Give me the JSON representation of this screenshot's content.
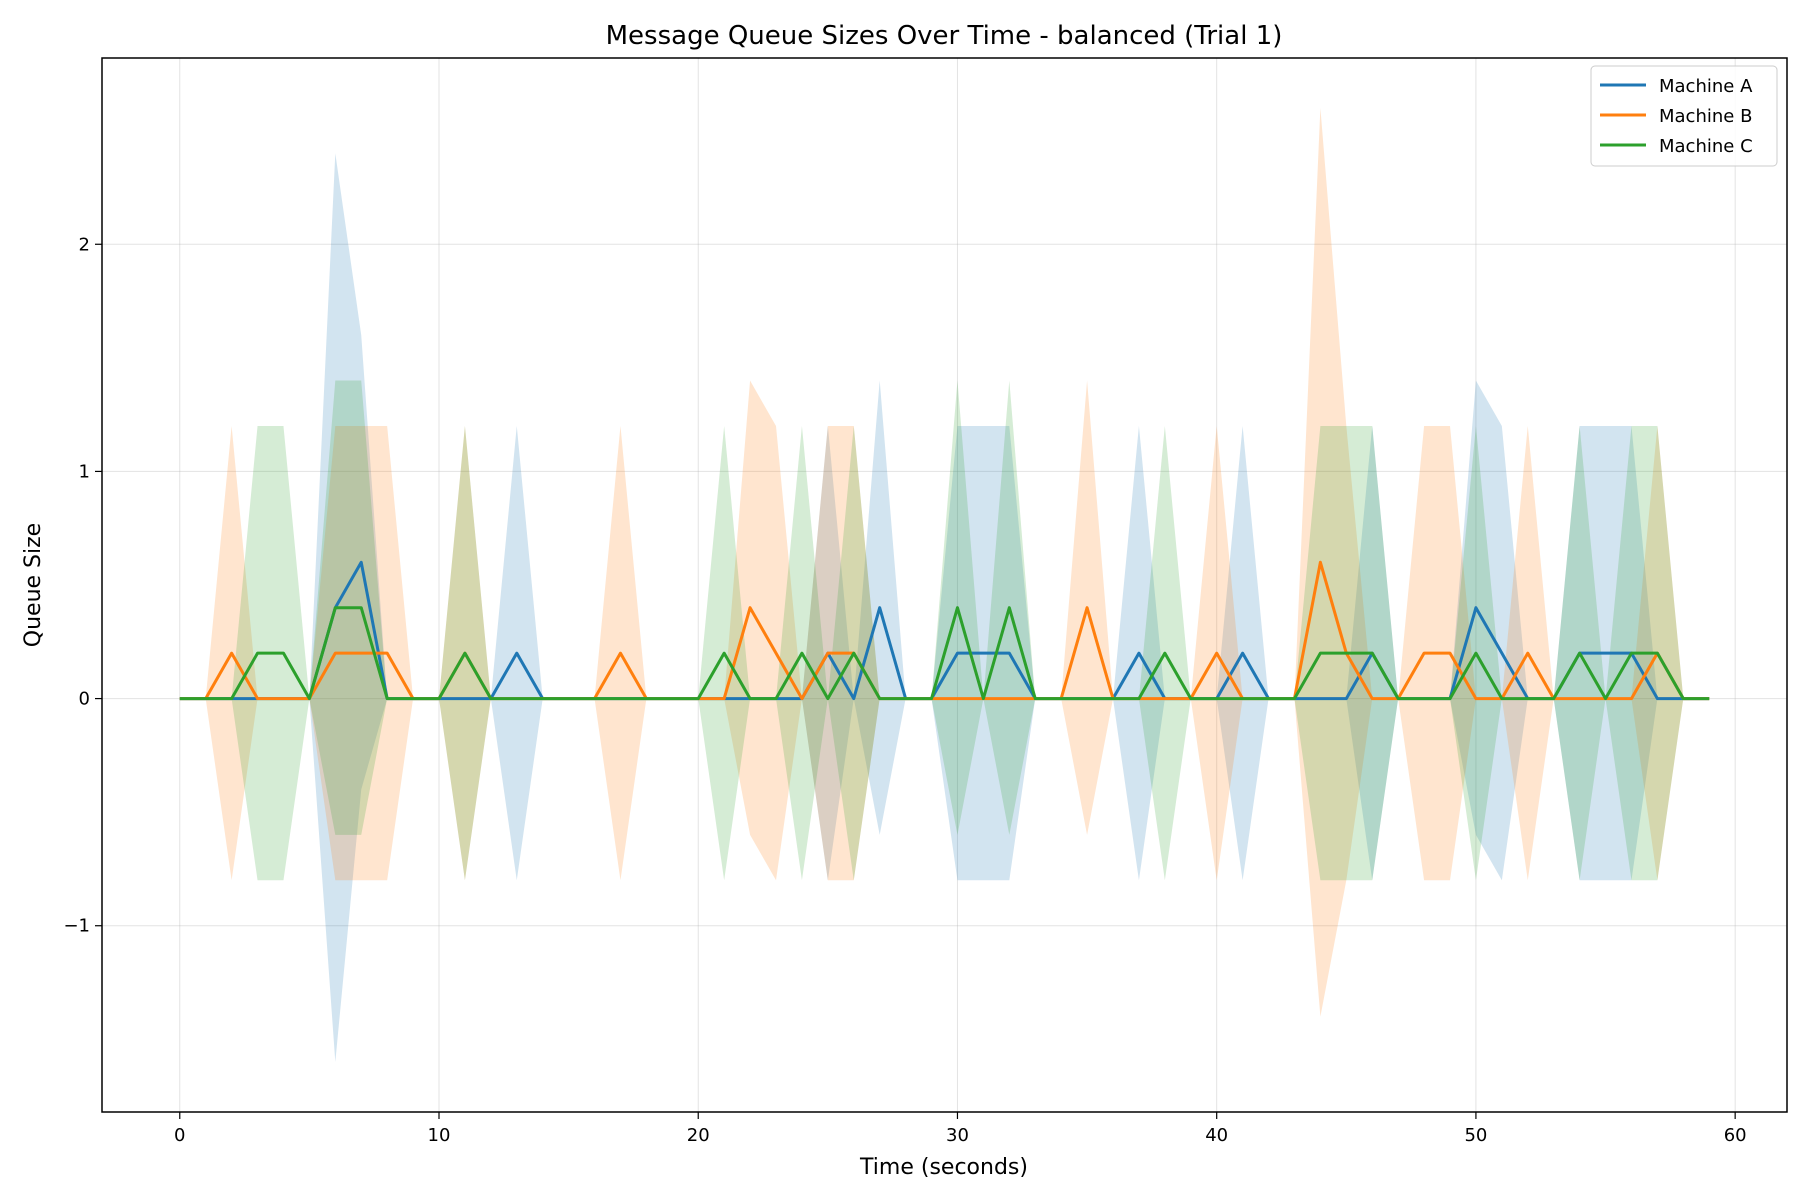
{
  "chart_data": {
    "type": "line",
    "title": "Message Queue Sizes Over Time - balanced (Trial 1)",
    "xlabel": "Time (seconds)",
    "ylabel": "Queue Size",
    "xlim": [
      -3,
      62
    ],
    "ylim": [
      -1.82,
      2.82
    ],
    "xticks": [
      0,
      10,
      20,
      30,
      40,
      50,
      60
    ],
    "xtick_labels": [
      "0",
      "10",
      "20",
      "30",
      "40",
      "50",
      "60"
    ],
    "yticks": [
      -1,
      0,
      1,
      2
    ],
    "ytick_labels": [
      "−1",
      "0",
      "1",
      "2"
    ],
    "grid": true,
    "legend_position": "top-right",
    "band_halfwidth_note": "shaded band = mean ± std",
    "x": [
      0,
      1,
      2,
      3,
      4,
      5,
      6,
      7,
      8,
      9,
      10,
      11,
      12,
      13,
      14,
      15,
      16,
      17,
      18,
      19,
      20,
      21,
      22,
      23,
      24,
      25,
      26,
      27,
      28,
      29,
      30,
      31,
      32,
      33,
      34,
      35,
      36,
      37,
      38,
      39,
      40,
      41,
      42,
      43,
      44,
      45,
      46,
      47,
      48,
      49,
      50,
      51,
      52,
      53,
      54,
      55,
      56,
      57,
      58,
      59
    ],
    "series": [
      {
        "name": "Machine A",
        "color": "#1f77b4",
        "mean": [
          0,
          0,
          0,
          0,
          0,
          0,
          0.4,
          0.6,
          0,
          0,
          0,
          0,
          0,
          0.2,
          0,
          0,
          0,
          0,
          0,
          0,
          0,
          0,
          0,
          0,
          0,
          0.2,
          0,
          0.4,
          0,
          0,
          0.2,
          0.2,
          0.2,
          0,
          0,
          0,
          0,
          0.2,
          0,
          0,
          0,
          0.2,
          0,
          0,
          0,
          0,
          0.2,
          0,
          0,
          0,
          0.4,
          0.2,
          0,
          0,
          0.2,
          0.2,
          0.2,
          0,
          0,
          0
        ],
        "std": [
          0,
          0,
          0,
          0,
          0,
          0,
          2.0,
          1.0,
          0,
          0,
          0,
          0,
          0,
          1.0,
          0,
          0,
          0,
          0,
          0,
          0,
          0,
          0,
          0,
          0,
          0,
          1.0,
          0,
          1.0,
          0,
          0,
          1.0,
          1.0,
          1.0,
          0,
          0,
          0,
          0,
          1.0,
          0,
          0,
          0,
          1.0,
          0,
          0,
          0,
          0,
          1.0,
          0,
          0,
          0,
          1.0,
          1.0,
          0,
          0,
          1.0,
          1.0,
          1.0,
          0,
          0,
          0
        ]
      },
      {
        "name": "Machine B",
        "color": "#ff7f0e",
        "mean": [
          0,
          0,
          0.2,
          0,
          0,
          0,
          0.2,
          0.2,
          0.2,
          0,
          0,
          0.2,
          0,
          0,
          0,
          0,
          0,
          0.2,
          0,
          0,
          0,
          0,
          0.4,
          0.2,
          0,
          0.2,
          0.2,
          0,
          0,
          0,
          0,
          0,
          0,
          0,
          0,
          0.4,
          0,
          0,
          0,
          0,
          0.2,
          0,
          0,
          0,
          0.6,
          0.2,
          0,
          0,
          0.2,
          0.2,
          0,
          0,
          0.2,
          0,
          0,
          0,
          0,
          0.2,
          0,
          0
        ],
        "std": [
          0,
          0,
          1.0,
          0,
          0,
          0,
          1.0,
          1.0,
          1.0,
          0,
          0,
          1.0,
          0,
          0,
          0,
          0,
          0,
          1.0,
          0,
          0,
          0,
          0,
          1.0,
          1.0,
          0,
          1.0,
          1.0,
          0,
          0,
          0,
          0,
          0,
          0,
          0,
          0,
          1.0,
          0,
          0,
          0,
          0,
          1.0,
          0,
          0,
          0,
          2.0,
          1.0,
          0,
          0,
          1.0,
          1.0,
          0,
          0,
          1.0,
          0,
          0,
          0,
          0,
          1.0,
          0,
          0
        ]
      },
      {
        "name": "Machine C",
        "color": "#2ca02c",
        "mean": [
          0,
          0,
          0,
          0.2,
          0.2,
          0,
          0.4,
          0.4,
          0,
          0,
          0,
          0.2,
          0,
          0,
          0,
          0,
          0,
          0,
          0,
          0,
          0,
          0.2,
          0,
          0,
          0.2,
          0,
          0.2,
          0,
          0,
          0,
          0.4,
          0,
          0.4,
          0,
          0,
          0,
          0,
          0,
          0.2,
          0,
          0,
          0,
          0,
          0,
          0.2,
          0.2,
          0.2,
          0,
          0,
          0,
          0.2,
          0,
          0,
          0,
          0.2,
          0,
          0.2,
          0.2,
          0,
          0
        ],
        "std": [
          0,
          0,
          0,
          1.0,
          1.0,
          0,
          1.0,
          1.0,
          0,
          0,
          0,
          1.0,
          0,
          0,
          0,
          0,
          0,
          0,
          0,
          0,
          0,
          1.0,
          0,
          0,
          1.0,
          0,
          1.0,
          0,
          0,
          0,
          1.0,
          0,
          1.0,
          0,
          0,
          0,
          0,
          0,
          1.0,
          0,
          0,
          0,
          0,
          0,
          1.0,
          1.0,
          1.0,
          0,
          0,
          0,
          1.0,
          0,
          0,
          0,
          1.0,
          0,
          1.0,
          1.0,
          0,
          0
        ]
      }
    ]
  }
}
